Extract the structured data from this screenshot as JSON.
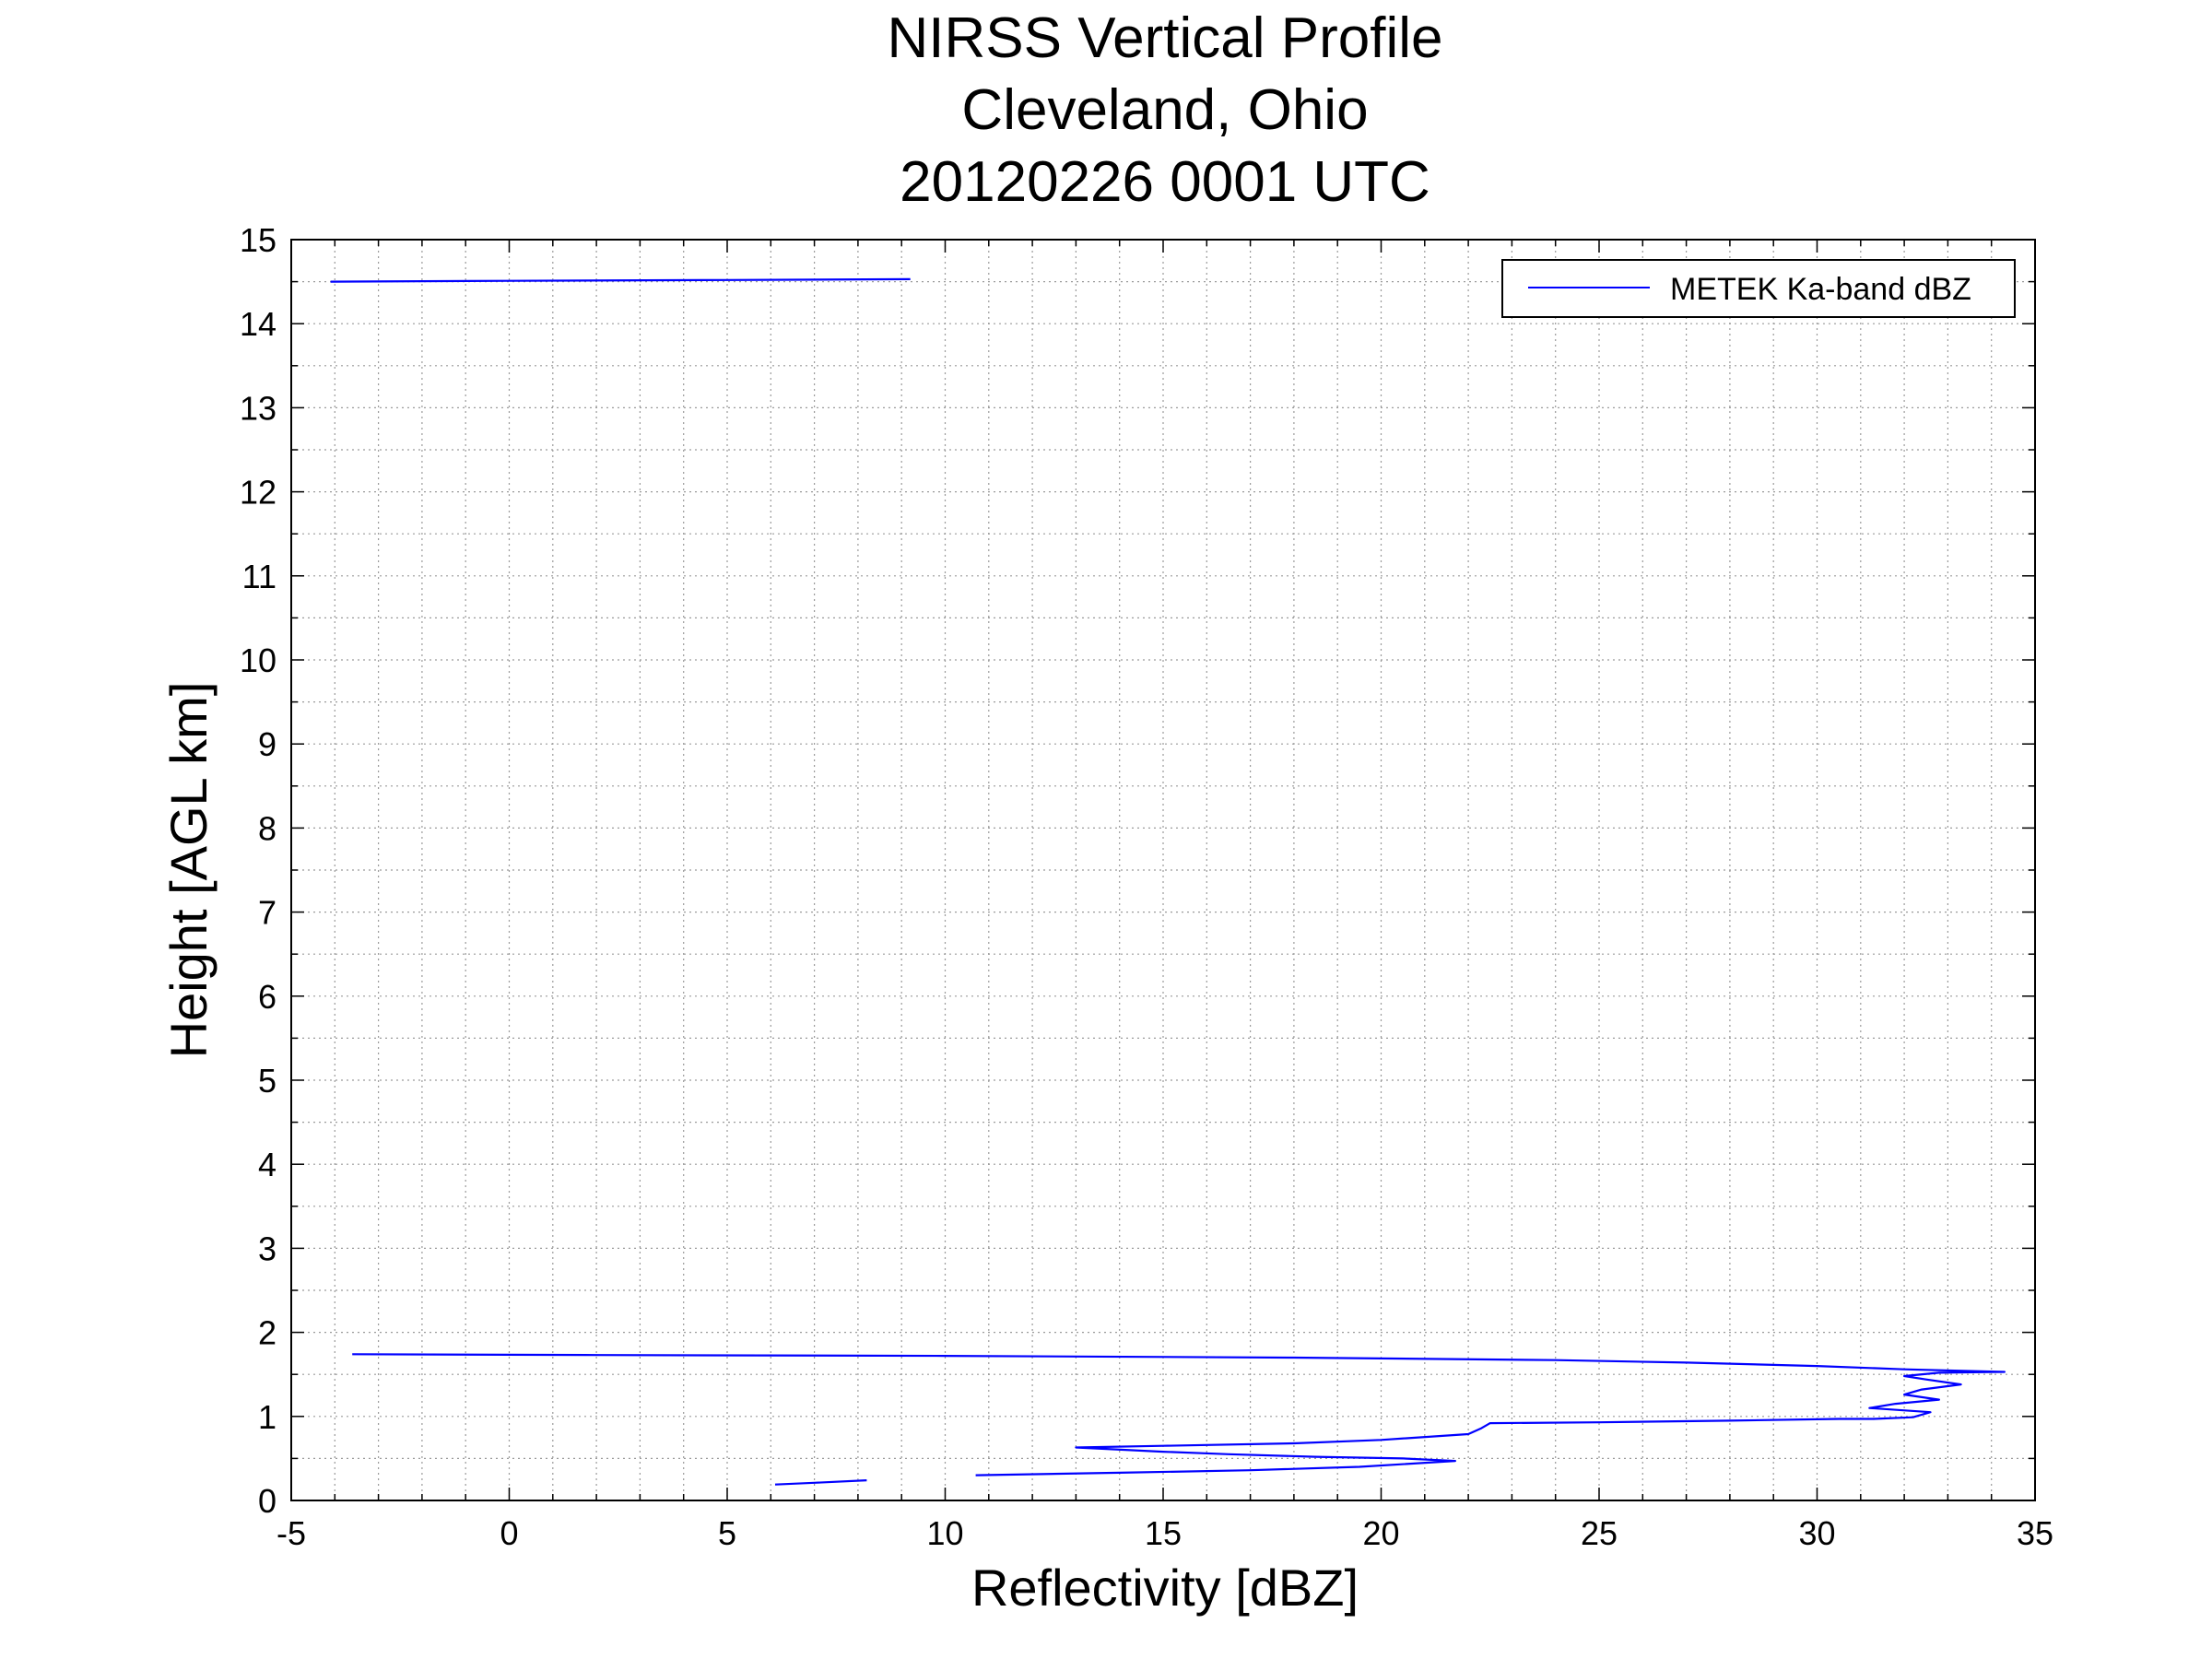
{
  "chart_data": {
    "type": "line",
    "title": [
      "NIRSS Vertical Profile",
      "Cleveland, Ohio",
      "20120226 0001 UTC"
    ],
    "xlabel": "Reflectivity [dBZ]",
    "ylabel": "Height [AGL km]",
    "xlim": [
      -5,
      35
    ],
    "ylim": [
      0,
      15
    ],
    "xticks": [
      "-5",
      "0",
      "5",
      "10",
      "15",
      "20",
      "25",
      "30",
      "35"
    ],
    "yticks": [
      "0",
      "1",
      "2",
      "3",
      "4",
      "5",
      "6",
      "7",
      "8",
      "9",
      "10",
      "11",
      "12",
      "13",
      "14",
      "15"
    ],
    "grid": true,
    "legend_position": "top-right",
    "series": [
      {
        "name": "METEK Ka-band dBZ",
        "color": "#0000ff",
        "segments": [
          [
            [
              6.1,
              0.19
            ],
            [
              7.0,
              0.21
            ],
            [
              8.2,
              0.24
            ]
          ],
          [
            [
              10.7,
              0.3
            ],
            [
              14.0,
              0.33
            ],
            [
              17.0,
              0.36
            ],
            [
              19.5,
              0.4
            ],
            [
              21.7,
              0.47
            ],
            [
              20.5,
              0.5
            ],
            [
              18.5,
              0.52
            ],
            [
              16.5,
              0.55
            ],
            [
              15.0,
              0.58
            ],
            [
              13.0,
              0.63
            ],
            [
              15.0,
              0.65
            ],
            [
              18.0,
              0.68
            ],
            [
              20.0,
              0.72
            ],
            [
              22.0,
              0.79
            ],
            [
              22.3,
              0.86
            ],
            [
              22.5,
              0.92
            ],
            [
              25.0,
              0.93
            ],
            [
              28.0,
              0.95
            ],
            [
              30.5,
              0.97
            ],
            [
              31.3,
              0.97
            ],
            [
              32.2,
              0.99
            ],
            [
              32.6,
              1.05
            ],
            [
              31.2,
              1.1
            ],
            [
              31.8,
              1.15
            ],
            [
              32.8,
              1.2
            ],
            [
              32.0,
              1.26
            ],
            [
              32.4,
              1.32
            ],
            [
              33.3,
              1.38
            ],
            [
              32.5,
              1.44
            ],
            [
              32.0,
              1.48
            ],
            [
              32.8,
              1.52
            ],
            [
              34.3,
              1.53
            ],
            [
              32.0,
              1.56
            ],
            [
              30.0,
              1.6
            ],
            [
              27.0,
              1.64
            ],
            [
              24.0,
              1.67
            ],
            [
              18.0,
              1.7
            ],
            [
              10.0,
              1.72
            ],
            [
              2.0,
              1.73
            ],
            [
              -3.6,
              1.74
            ]
          ],
          [
            [
              -4.1,
              14.5
            ],
            [
              0.0,
              14.51
            ],
            [
              5.0,
              14.52
            ],
            [
              9.2,
              14.53
            ]
          ]
        ]
      }
    ]
  }
}
